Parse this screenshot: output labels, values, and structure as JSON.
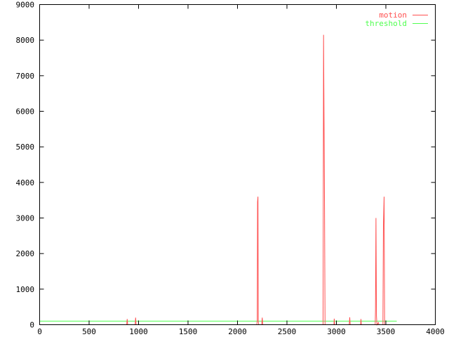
{
  "chart_data": {
    "type": "line",
    "title": "",
    "xlabel": "",
    "ylabel": "",
    "xlim": [
      0,
      4000
    ],
    "ylim": [
      0,
      9000
    ],
    "xticks": [
      0,
      500,
      1000,
      1500,
      2000,
      2500,
      3000,
      3500,
      4000
    ],
    "yticks": [
      0,
      1000,
      2000,
      3000,
      4000,
      5000,
      6000,
      7000,
      8000,
      9000
    ],
    "grid": false,
    "legend_position": "top-right",
    "series": [
      {
        "name": "motion",
        "color": "#ff5050",
        "points": [
          [
            0,
            0
          ],
          [
            880,
            0
          ],
          [
            885,
            160
          ],
          [
            890,
            0
          ],
          [
            965,
            0
          ],
          [
            970,
            200
          ],
          [
            975,
            0
          ],
          [
            2195,
            0
          ],
          [
            2200,
            100
          ],
          [
            2203,
            3450
          ],
          [
            2207,
            3600
          ],
          [
            2210,
            100
          ],
          [
            2215,
            0
          ],
          [
            2245,
            0
          ],
          [
            2250,
            200
          ],
          [
            2255,
            0
          ],
          [
            2865,
            0
          ],
          [
            2870,
            8150
          ],
          [
            2875,
            5700
          ],
          [
            2880,
            3200
          ],
          [
            2885,
            0
          ],
          [
            2975,
            0
          ],
          [
            2978,
            170
          ],
          [
            2982,
            0
          ],
          [
            3130,
            0
          ],
          [
            3135,
            210
          ],
          [
            3140,
            0
          ],
          [
            3245,
            0
          ],
          [
            3248,
            160
          ],
          [
            3252,
            0
          ],
          [
            3392,
            0
          ],
          [
            3395,
            400
          ],
          [
            3400,
            3000
          ],
          [
            3405,
            250
          ],
          [
            3410,
            0
          ],
          [
            3425,
            60
          ],
          [
            3430,
            0
          ],
          [
            3470,
            0
          ],
          [
            3475,
            2800
          ],
          [
            3482,
            3600
          ],
          [
            3487,
            0
          ],
          [
            3610,
            0
          ]
        ]
      },
      {
        "name": "threshold",
        "color": "#50ff50",
        "points": [
          [
            0,
            100
          ],
          [
            3610,
            100
          ]
        ]
      }
    ]
  }
}
